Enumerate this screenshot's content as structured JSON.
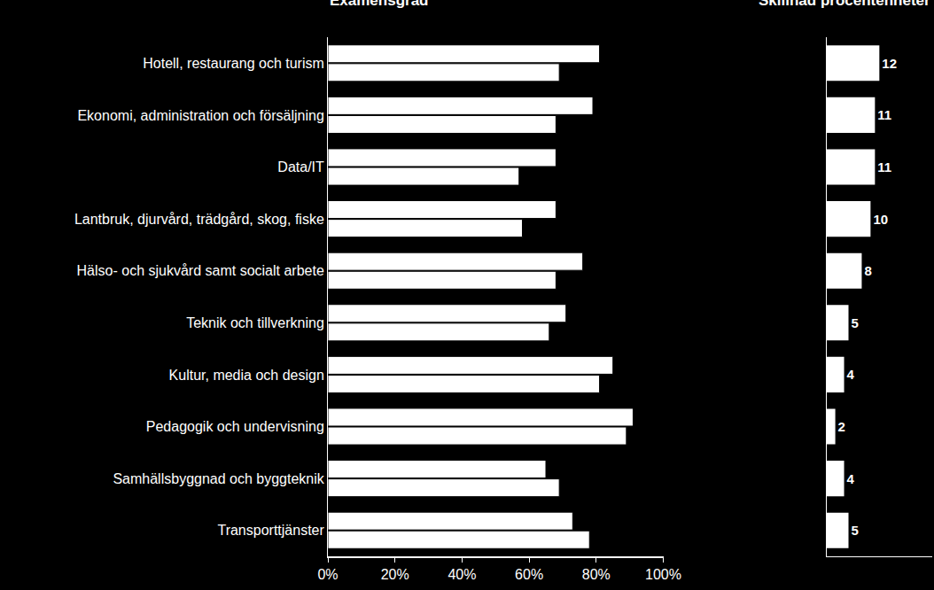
{
  "chart_data": [
    {
      "type": "bar",
      "title": "Examensgrad",
      "orientation": "horizontal",
      "categories": [
        "Hotell, restaurang och turism",
        "Ekonomi, administration och försäljning",
        "Data/IT",
        "Lantbruk, djurvård, trädgård, skog, fiske",
        "Hälso- och sjukvård samt socialt arbete",
        "Teknik och tillverkning",
        "Kultur, media och design",
        "Pedagogik och undervisning",
        "Samhällsbyggnad och byggteknik",
        "Transporttjänster"
      ],
      "series": [
        {
          "color": "#ffffff",
          "values": [
            81,
            79,
            68,
            68,
            76,
            71,
            85,
            91,
            65,
            73
          ]
        },
        {
          "color": "#ffffff",
          "values": [
            69,
            68,
            57,
            58,
            68,
            66,
            81,
            89,
            69,
            78
          ]
        }
      ],
      "xlim": [
        0,
        100
      ],
      "xticks": [
        {
          "value": 0,
          "label": "0%"
        },
        {
          "value": 20,
          "label": "20%"
        },
        {
          "value": 40,
          "label": "40%"
        },
        {
          "value": 60,
          "label": "60%"
        },
        {
          "value": 80,
          "label": "80%"
        },
        {
          "value": 100,
          "label": "100%"
        }
      ],
      "grid": false
    },
    {
      "type": "bar",
      "title": "Skillnad procentenheter",
      "orientation": "horizontal",
      "categories": [
        "Hotell, restaurang och turism",
        "Ekonomi, administration och försäljning",
        "Data/IT",
        "Lantbruk, djurvård, trädgård, skog, fiske",
        "Hälso- och sjukvård samt socialt arbete",
        "Teknik och tillverkning",
        "Kultur, media och design",
        "Pedagogik och undervisning",
        "Samhällsbyggnad och byggteknik",
        "Transporttjänster"
      ],
      "values": [
        12,
        11,
        11,
        10,
        8,
        5,
        4,
        2,
        4,
        5
      ],
      "color": "#ffffff",
      "xlim": [
        0,
        24
      ],
      "data_labels": true,
      "tick_labels": false,
      "grid": false
    }
  ]
}
